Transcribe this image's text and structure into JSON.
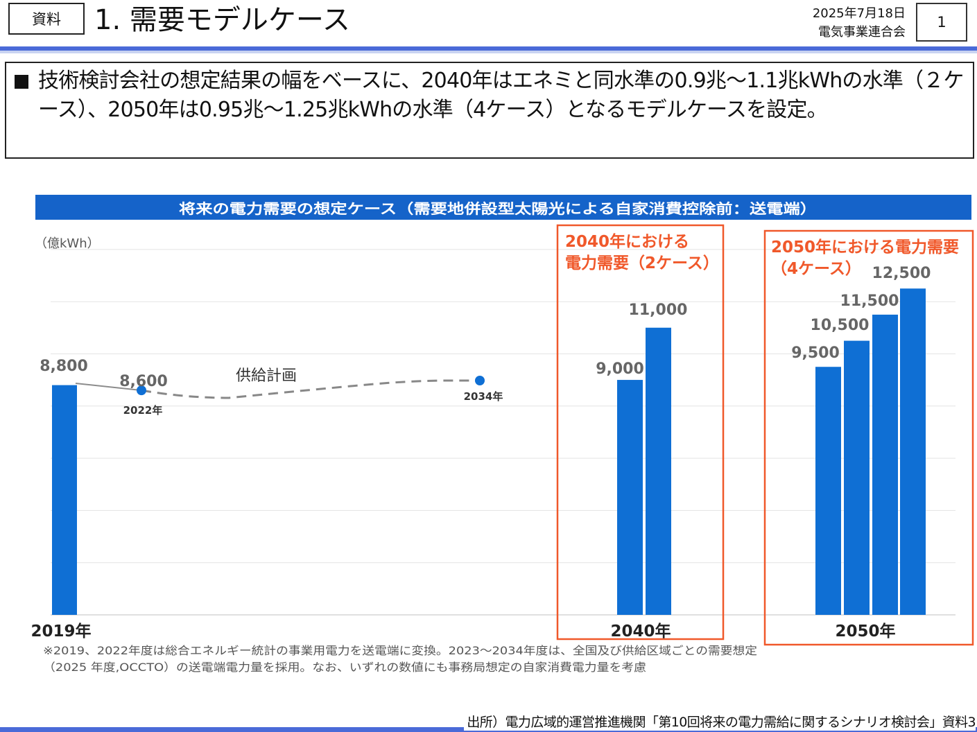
{
  "header": {
    "label": "資料",
    "title": "1.  需要モデルケース",
    "date": "2025年7月18日",
    "org": "電気事業連合会",
    "page_number": "1"
  },
  "summary": {
    "text": "技術検討会社の想定結果の幅をベースに、2040年はエネミと同水準の0.9兆～1.1兆kWhの水準（２ケース）、2050年は0.95兆～1.25兆kWhの水準（4ケース）となるモデルケースを設定。"
  },
  "chart_data": {
    "type": "bar",
    "title": "将来の電力需要の想定ケース（需要地併設型太陽光による自家消費控除前：送電端）",
    "unit_label": "（億kWh）",
    "ylim": [
      0,
      14000
    ],
    "grid": true,
    "bars": [
      {
        "group": "2019年",
        "value": 8800,
        "label": "8,800"
      },
      {
        "group": "2040年",
        "value": 9000,
        "label": "9,000"
      },
      {
        "group": "2040年",
        "value": 11000,
        "label": "11,000"
      },
      {
        "group": "2050年",
        "value": 9500,
        "label": "9,500"
      },
      {
        "group": "2050年",
        "value": 10500,
        "label": "10,500"
      },
      {
        "group": "2050年",
        "value": 11500,
        "label": "11,500"
      },
      {
        "group": "2050年",
        "value": 12500,
        "label": "12,500"
      }
    ],
    "supply_plan": {
      "name": "供給計画",
      "start": {
        "year": 2022,
        "value": 8600,
        "value_label": "8,600",
        "year_label": "2022年"
      },
      "end": {
        "year": 2034,
        "value": 8800,
        "year_label": "2034年"
      }
    },
    "x_labels": [
      "2019年",
      "2040年",
      "2050年"
    ],
    "callouts": [
      {
        "group": "2040年",
        "lines": [
          "2040年における",
          "電力需要（2ケース）"
        ]
      },
      {
        "group": "2050年",
        "lines": [
          "2050年における電力需要",
          "（4ケース）"
        ]
      }
    ],
    "notes": [
      "※2019、2022年度は総合エネルギー統計の事業用電力を送電端に変換。2023～2034年度は、全国及び供給区域ごとの需要想定",
      "（2025 年度,OCCTO）の送電端電力量を採用。なお、いずれの数値にも事務局想定の自家消費電力量を考慮"
    ],
    "colors": {
      "bar": "#0f6fd4",
      "banner": "#1563c9",
      "callout": "#f0582a",
      "grid": "#e3e3e3",
      "line": "#8c8c8c",
      "dash": "#888888"
    }
  },
  "source": {
    "text": "出所）電力広域的運営推進機関「第10回将来の電力需給に関するシナリオ検討会」資料3"
  }
}
